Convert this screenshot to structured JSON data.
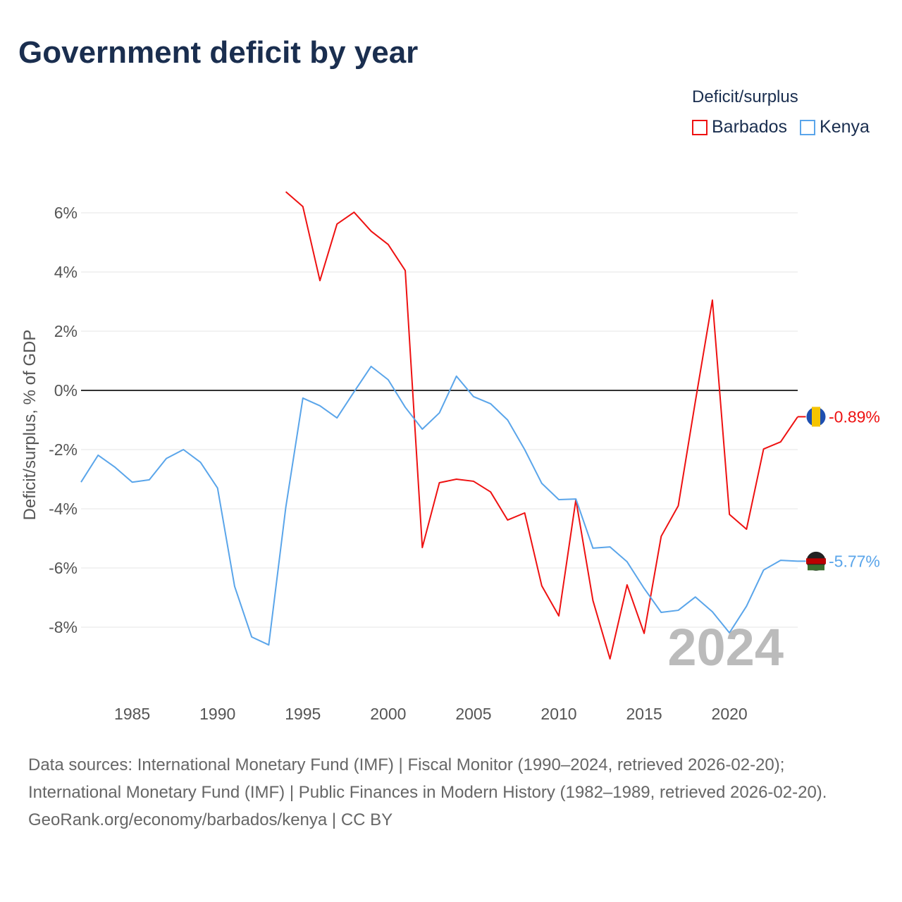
{
  "title": "Government deficit by year",
  "legend": {
    "title": "Deficit/surplus",
    "items": [
      {
        "label": "Barbados",
        "color": "#ee1111"
      },
      {
        "label": "Kenya",
        "color": "#5aa5ea"
      }
    ]
  },
  "year_watermark": "2024",
  "footer": {
    "sources": "Data sources: International Monetary Fund (IMF) | Fiscal Monitor (1990–2024, retrieved 2026-02-20); International Monetary Fund (IMF) | Public Finances in Modern History (1982–1989, retrieved 2026-02-20).",
    "credit": "GeoRank.org/economy/barbados/kenya | CC BY"
  },
  "chart_data": {
    "type": "line",
    "title": "Government deficit by year",
    "xlabel": "",
    "ylabel": "Deficit/surplus, % of GDP",
    "xlim": [
      1982,
      2024
    ],
    "ylim": [
      -10.2,
      7
    ],
    "xticks": [
      "1985",
      "1990",
      "1995",
      "2000",
      "2005",
      "2010",
      "2015",
      "2020"
    ],
    "yticks": [
      {
        "v": 6,
        "label": "6%"
      },
      {
        "v": 4,
        "label": "4%"
      },
      {
        "v": 2,
        "label": "2%"
      },
      {
        "v": 0,
        "label": "0%"
      },
      {
        "v": -2,
        "label": "-2%"
      },
      {
        "v": -4,
        "label": "-4%"
      },
      {
        "v": -6,
        "label": "-6%"
      },
      {
        "v": -8,
        "label": "-8%"
      }
    ],
    "grid": true,
    "legend_position": "top-right",
    "series": [
      {
        "name": "Barbados",
        "color": "#ee1111",
        "end_label": "-0.89%",
        "x": [
          1994,
          1995,
          1996,
          1997,
          1998,
          1999,
          2000,
          2001,
          2002,
          2003,
          2004,
          2005,
          2006,
          2007,
          2008,
          2009,
          2010,
          2011,
          2012,
          2013,
          2014,
          2015,
          2016,
          2017,
          2018,
          2019,
          2020,
          2021,
          2022,
          2023,
          2024
        ],
        "values": [
          6.71,
          6.21,
          3.71,
          5.62,
          6.02,
          5.38,
          4.93,
          4.05,
          -5.31,
          -3.12,
          -3.0,
          -3.07,
          -3.43,
          -4.38,
          -4.14,
          -6.6,
          -7.62,
          -3.69,
          -7.1,
          -9.07,
          -6.57,
          -8.21,
          -4.93,
          -3.9,
          -0.38,
          3.05,
          -4.19,
          -4.69,
          -1.98,
          -1.74,
          -0.89
        ]
      },
      {
        "name": "Kenya",
        "color": "#5aa5ea",
        "end_label": "-5.77%",
        "x": [
          1982,
          1983,
          1984,
          1985,
          1986,
          1987,
          1988,
          1989,
          1990,
          1991,
          1992,
          1993,
          1994,
          1995,
          1996,
          1997,
          1998,
          1999,
          2000,
          2001,
          2002,
          2003,
          2004,
          2005,
          2006,
          2007,
          2008,
          2009,
          2010,
          2011,
          2012,
          2013,
          2014,
          2015,
          2016,
          2017,
          2018,
          2019,
          2020,
          2021,
          2022,
          2023,
          2024
        ],
        "values": [
          -3.1,
          -2.19,
          -2.6,
          -3.1,
          -3.02,
          -2.3,
          -2.0,
          -2.43,
          -3.3,
          -6.62,
          -8.33,
          -8.6,
          -3.95,
          -0.26,
          -0.52,
          -0.93,
          -0.05,
          0.81,
          0.36,
          -0.57,
          -1.31,
          -0.76,
          0.48,
          -0.21,
          -0.45,
          -1.0,
          -2.0,
          -3.14,
          -3.69,
          -3.67,
          -5.33,
          -5.29,
          -5.79,
          -6.69,
          -7.5,
          -7.43,
          -6.98,
          -7.48,
          -8.19,
          -7.29,
          -6.07,
          -5.74,
          -5.77
        ]
      }
    ]
  }
}
